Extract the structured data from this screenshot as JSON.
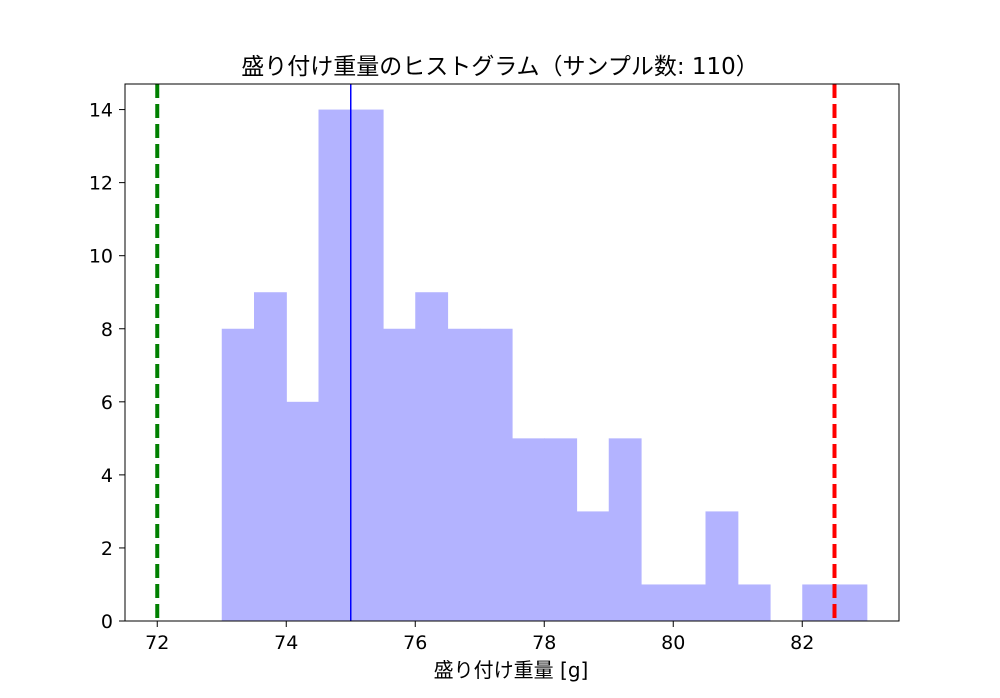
{
  "chart_data": {
    "type": "bar",
    "title": "盛り付け重量のヒストグラム（サンプル数: 110）",
    "xlabel": "盛り付け重量 [g]",
    "ylabel": "",
    "xlim": [
      71.5,
      83.5
    ],
    "ylim": [
      0,
      14.7
    ],
    "xticks": [
      72,
      74,
      76,
      78,
      80,
      82
    ],
    "yticks": [
      0,
      2,
      4,
      6,
      8,
      10,
      12,
      14
    ],
    "bin_width": 0.5,
    "bin_edges": [
      73.0,
      73.5,
      74.0,
      74.5,
      75.0,
      75.5,
      76.0,
      76.5,
      77.0,
      77.5,
      78.0,
      78.5,
      79.0,
      79.5,
      80.0,
      80.5,
      81.0,
      81.5,
      82.0,
      82.5,
      83.0
    ],
    "values": [
      8,
      9,
      6,
      14,
      14,
      8,
      9,
      8,
      8,
      5,
      5,
      3,
      5,
      1,
      1,
      3,
      1,
      0,
      1,
      1
    ],
    "bar_color": "#b3b3ff",
    "reference_lines": [
      {
        "x": 72.0,
        "color": "#008000",
        "style": "dashed"
      },
      {
        "x": 82.5,
        "color": "#ff0000",
        "style": "dashed"
      },
      {
        "x": 75.0,
        "color": "#0000ff",
        "style": "solid"
      }
    ],
    "grid": false,
    "legend": "none"
  }
}
